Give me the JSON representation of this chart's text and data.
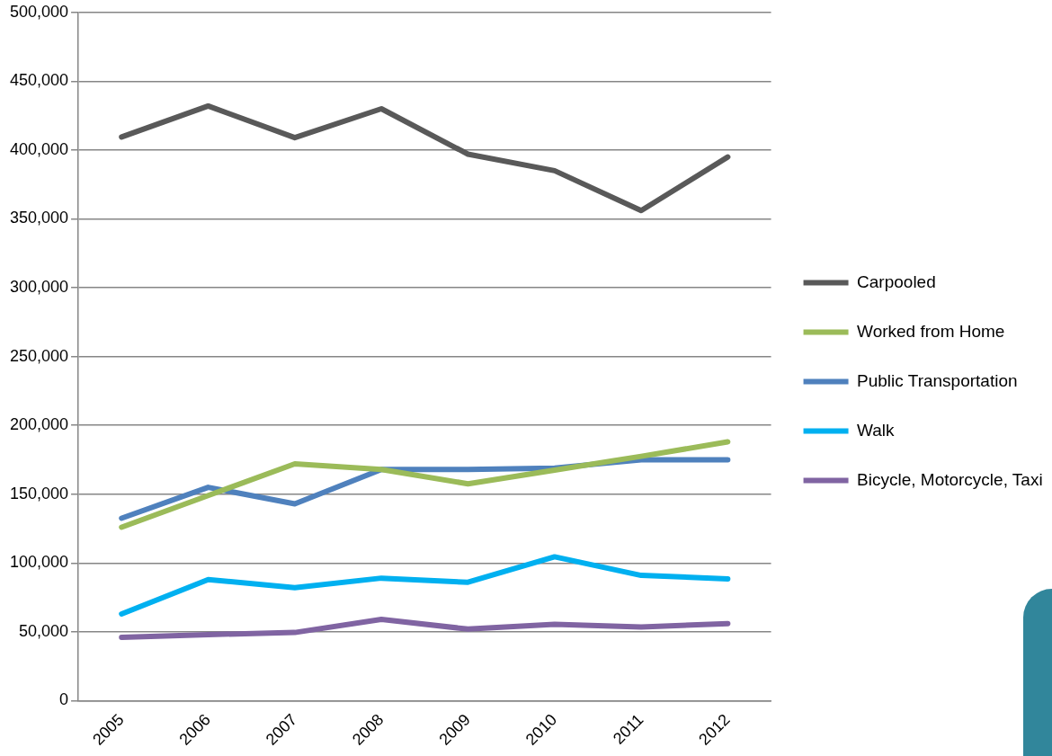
{
  "chart_data": {
    "type": "line",
    "categories": [
      "2005",
      "2006",
      "2007",
      "2008",
      "2009",
      "2010",
      "2011",
      "2012"
    ],
    "series": [
      {
        "name": "Carpooled",
        "color": "#595959",
        "values": [
          409500,
          432000,
          409000,
          430000,
          397000,
          385000,
          356000,
          395000
        ]
      },
      {
        "name": "Worked from Home",
        "color": "#9bbb59",
        "values": [
          126000,
          149000,
          172000,
          168000,
          157500,
          167500,
          177500,
          188000
        ]
      },
      {
        "name": "Public Transportation",
        "color": "#4f81bd",
        "values": [
          132500,
          155000,
          143000,
          168000,
          168000,
          169000,
          175000,
          175000
        ]
      },
      {
        "name": "Walk",
        "color": "#00b0f0",
        "values": [
          63000,
          88000,
          82000,
          89000,
          86000,
          104500,
          91000,
          88500
        ]
      },
      {
        "name": "Bicycle, Motorcycle, Taxi",
        "color": "#8064a2",
        "values": [
          46000,
          48000,
          49500,
          59000,
          52000,
          55500,
          53500,
          56000
        ]
      }
    ],
    "ylim": [
      0,
      500000
    ],
    "yticks": [
      0,
      {
        "value": 50000,
        "label": "50,000"
      },
      {
        "value": 100000,
        "label": "100,000"
      },
      {
        "value": 150000,
        "label": "150,000"
      },
      {
        "value": 200000,
        "label": "200,000"
      },
      {
        "value": 250000,
        "label": "250,000"
      },
      {
        "value": 300000,
        "label": "300,000"
      },
      {
        "value": 350000,
        "label": "350,000"
      },
      {
        "value": 400000,
        "label": "400,000"
      },
      {
        "value": 450000,
        "label": "450,000"
      },
      {
        "value": 500000,
        "label": "500,000"
      }
    ],
    "grid": "y",
    "legend": "right",
    "marker": "none",
    "line_style": "solid"
  }
}
